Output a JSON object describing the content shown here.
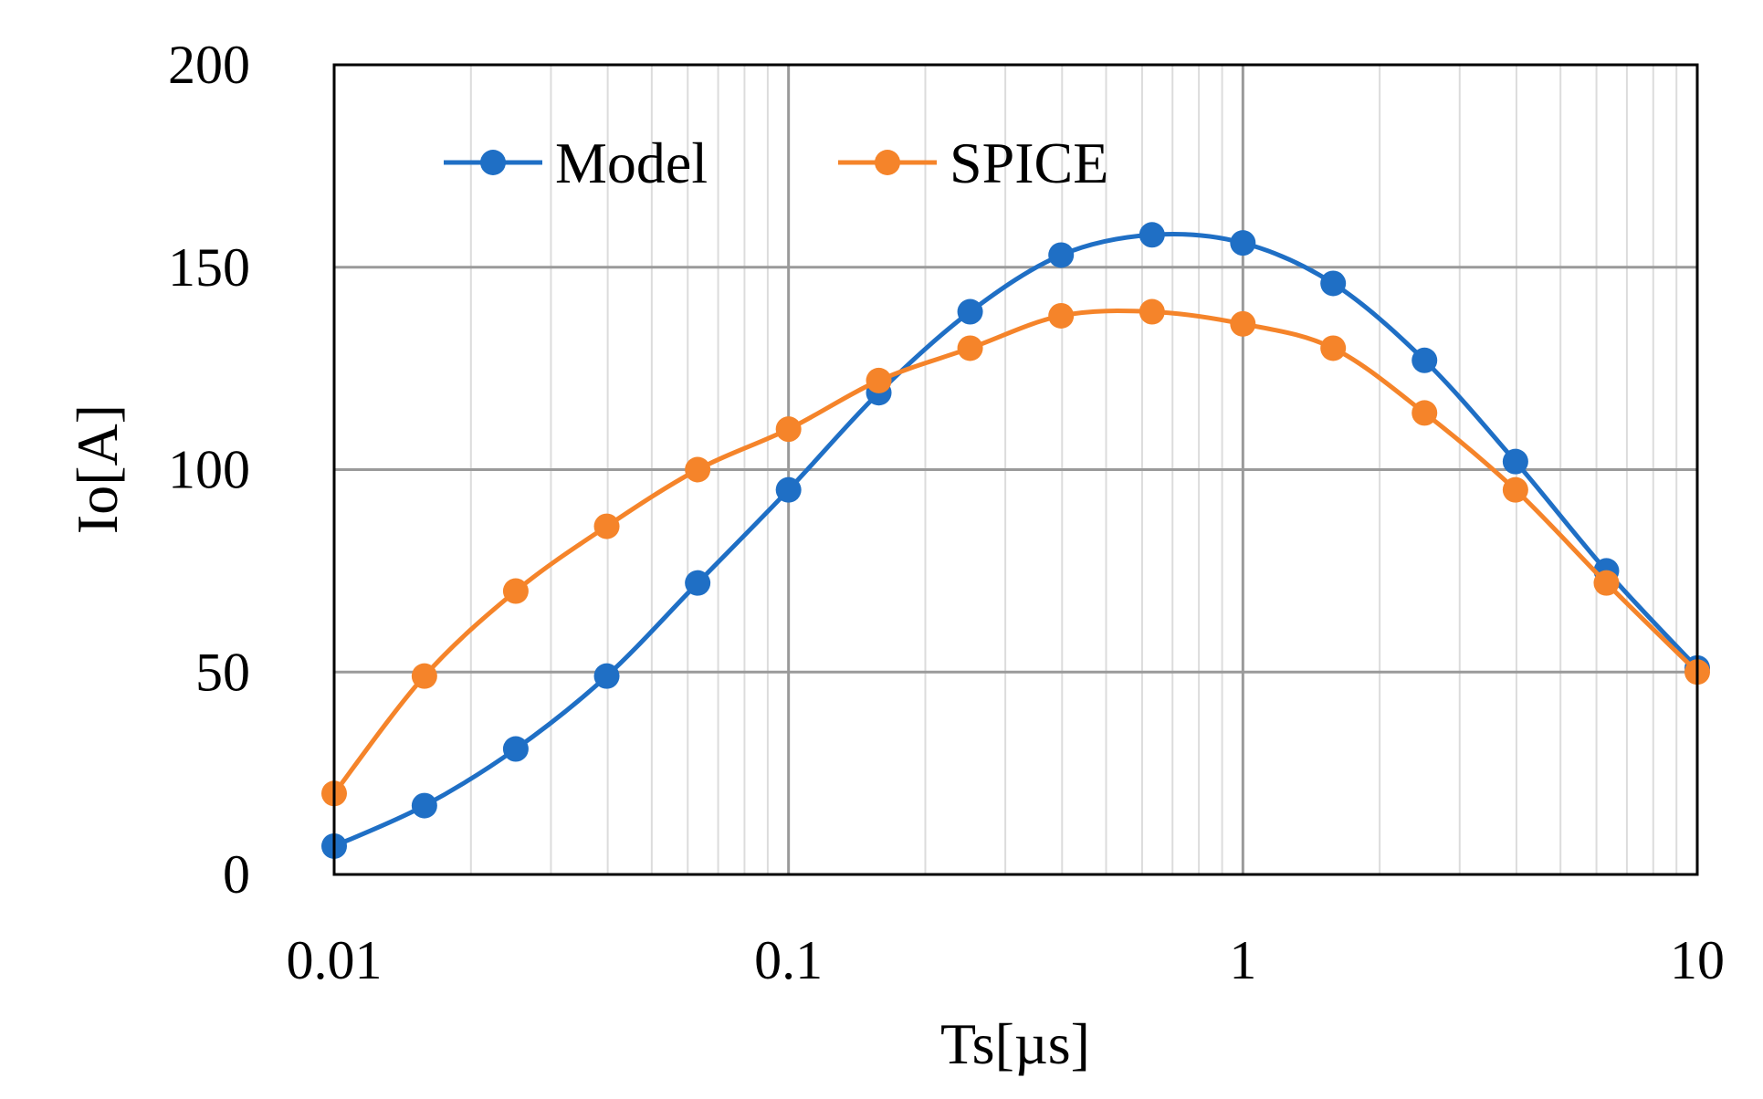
{
  "chart_data": {
    "type": "line",
    "xscale": "log",
    "xlabel": "Ts[µs]",
    "ylabel": "Io[A]",
    "xlim": [
      0.01,
      10
    ],
    "ylim": [
      0,
      200
    ],
    "xticks": [
      0.01,
      0.1,
      1,
      10
    ],
    "xtick_labels": [
      "0.01",
      "0.1",
      "1",
      "10"
    ],
    "yticks": [
      0,
      50,
      100,
      150,
      200
    ],
    "ytick_labels": [
      "0",
      "50",
      "100",
      "150",
      "200"
    ],
    "grid": true,
    "legend_position": "top-left",
    "x": [
      0.01,
      0.0158,
      0.0251,
      0.0398,
      0.0631,
      0.1,
      0.158,
      0.251,
      0.398,
      0.631,
      1,
      1.58,
      2.51,
      3.98,
      6.31,
      10
    ],
    "series": [
      {
        "name": "Model",
        "color": "#1f6fc5",
        "values": [
          7,
          17,
          31,
          49,
          72,
          95,
          119,
          139,
          153,
          158,
          156,
          146,
          127,
          102,
          75,
          51
        ]
      },
      {
        "name": "SPICE",
        "color": "#f5842a",
        "values": [
          20,
          49,
          70,
          86,
          100,
          110,
          122,
          130,
          138,
          139,
          136,
          130,
          114,
          95,
          72,
          50
        ]
      }
    ]
  }
}
